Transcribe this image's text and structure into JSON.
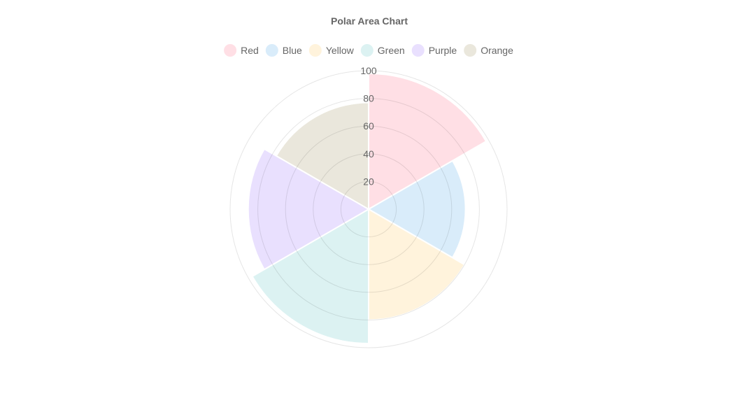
{
  "chart_data": {
    "type": "polarArea",
    "title": "Polar Area Chart",
    "legend_position": "top",
    "categories": [
      "Red",
      "Blue",
      "Yellow",
      "Green",
      "Purple",
      "Orange"
    ],
    "values": [
      98,
      70,
      80,
      97,
      87,
      77
    ],
    "colors": [
      "#ffdfe5",
      "#d9ecfa",
      "#fff3dc",
      "#dcf2f2",
      "#e9e0fe",
      "#eae7dc"
    ],
    "r_range": [
      0,
      100
    ],
    "r_ticks": [
      "20",
      "40",
      "60",
      "80",
      "100"
    ],
    "r_tick_values": [
      20,
      40,
      60,
      80,
      100
    ],
    "grid": true
  }
}
